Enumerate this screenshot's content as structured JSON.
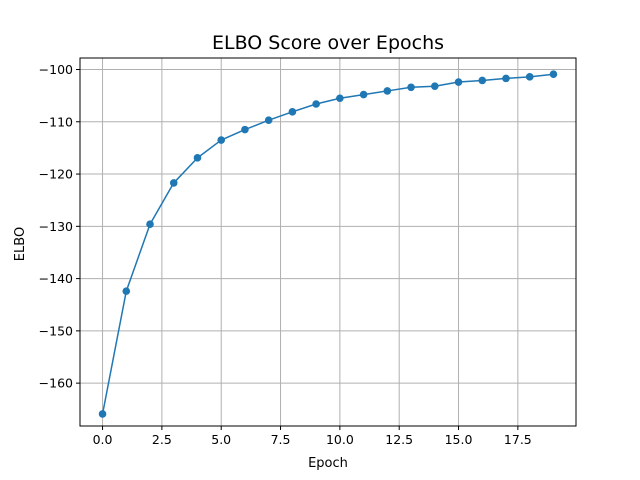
{
  "chart_data": {
    "type": "line",
    "title": "ELBO Score over Epochs",
    "xlabel": "Epoch",
    "ylabel": "ELBO",
    "xlim": [
      -0.95,
      19.95
    ],
    "ylim": [
      -168.2,
      -97.8
    ],
    "xticks": [
      "0.0",
      "2.5",
      "5.0",
      "7.5",
      "10.0",
      "12.5",
      "15.0",
      "17.5"
    ],
    "xtick_values": [
      0,
      2.5,
      5,
      7.5,
      10,
      12.5,
      15,
      17.5
    ],
    "yticks": [
      "−160",
      "−150",
      "−140",
      "−130",
      "−120",
      "−110",
      "−100"
    ],
    "ytick_values": [
      -160,
      -150,
      -140,
      -130,
      -120,
      -110,
      -100
    ],
    "grid": true,
    "series": [
      {
        "color": "#1f77b4",
        "marker": "circle",
        "x": [
          0,
          1,
          2,
          3,
          4,
          5,
          6,
          7,
          8,
          9,
          10,
          11,
          12,
          13,
          14,
          15,
          16,
          17,
          18,
          19
        ],
        "values": [
          -165.9,
          -142.4,
          -129.6,
          -121.7,
          -116.9,
          -113.5,
          -111.5,
          -109.7,
          -108.1,
          -106.6,
          -105.5,
          -104.8,
          -104.1,
          -103.4,
          -103.2,
          -102.4,
          -102.1,
          -101.7,
          -101.4,
          -100.9
        ]
      }
    ]
  }
}
